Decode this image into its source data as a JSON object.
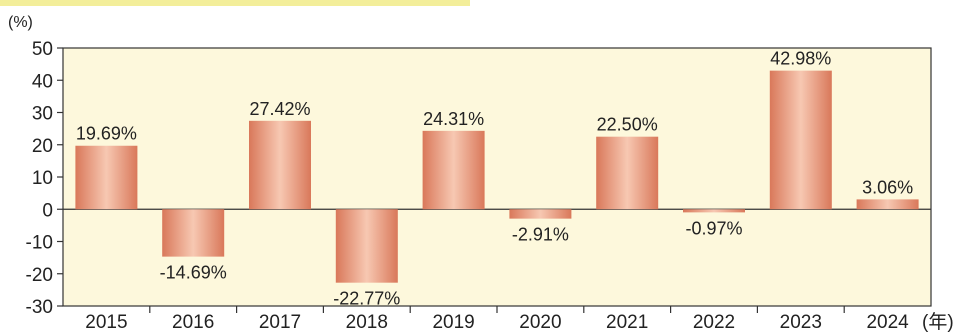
{
  "chart_data": {
    "type": "bar",
    "y_unit": "(%)",
    "x_unit": "(年)",
    "categories": [
      "2015",
      "2016",
      "2017",
      "2018",
      "2019",
      "2020",
      "2021",
      "2022",
      "2023",
      "2024"
    ],
    "values": [
      19.69,
      -14.69,
      27.42,
      -22.77,
      24.31,
      -2.91,
      22.5,
      -0.97,
      42.98,
      3.06
    ],
    "data_labels": [
      "19.69%",
      "-14.69%",
      "27.42%",
      "-22.77%",
      "24.31%",
      "-2.91%",
      "22.50%",
      "-0.97%",
      "42.98%",
      "3.06%"
    ],
    "ylim": [
      -30,
      50
    ],
    "yticks": [
      "50",
      "40",
      "30",
      "20",
      "10",
      "0",
      "-10",
      "-20",
      "-30"
    ],
    "title": "",
    "xlabel": "",
    "ylabel": "",
    "grid": false,
    "colors": {
      "plot_background": "#fdf8dc",
      "bar_light": "#f7c8b2",
      "bar_dark": "#d9785a",
      "axis": "#333333",
      "header_stripe": "#f3ee9a"
    }
  }
}
